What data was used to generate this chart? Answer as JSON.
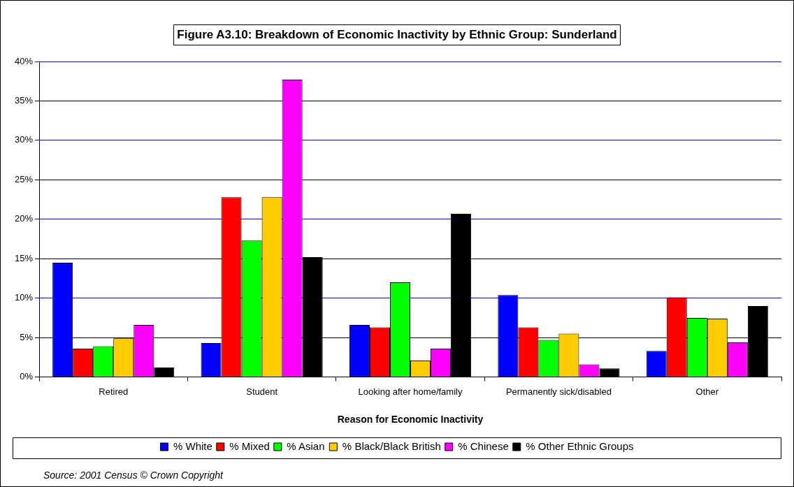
{
  "chart_data": {
    "type": "bar",
    "title": "Figure A3.10: Breakdown of Economic Inactivity by Ethnic Group: Sunderland",
    "xlabel": "Reason for Economic Inactivity",
    "categories": [
      "Retired",
      "Student",
      "Looking after home/family",
      "Permanently sick/disabled",
      "Other"
    ],
    "series": [
      {
        "name": "% White",
        "color": "#0000ff",
        "values": [
          14.5,
          4.3,
          6.6,
          10.4,
          3.3
        ]
      },
      {
        "name": "% Mixed",
        "color": "#ff0000",
        "values": [
          3.6,
          22.8,
          6.3,
          6.3,
          10.1
        ]
      },
      {
        "name": "% Asian",
        "color": "#00ff00",
        "values": [
          3.9,
          17.3,
          12.0,
          4.7,
          7.5
        ]
      },
      {
        "name": "% Black/Black British",
        "color": "#ffcc00",
        "values": [
          4.9,
          22.8,
          2.1,
          5.5,
          7.4
        ]
      },
      {
        "name": "% Chinese",
        "color": "#ff00ff",
        "values": [
          6.6,
          37.7,
          3.6,
          1.6,
          4.4
        ]
      },
      {
        "name": "% Other Ethnic Groups",
        "color": "#000000",
        "values": [
          1.2,
          15.2,
          20.7,
          1.1,
          9.0
        ]
      }
    ],
    "ylim": [
      0,
      40
    ],
    "yticks": [
      {
        "value": 0,
        "label": "0%"
      },
      {
        "value": 5,
        "label": "5%"
      },
      {
        "value": 10,
        "label": "10%"
      },
      {
        "value": 15,
        "label": "15%"
      },
      {
        "value": 20,
        "label": "20%"
      },
      {
        "value": 25,
        "label": "25%"
      },
      {
        "value": 30,
        "label": "30%"
      },
      {
        "value": 35,
        "label": "35%"
      },
      {
        "value": 40,
        "label": "40%"
      }
    ],
    "grid": "y",
    "legend": "bottom",
    "annotations": [
      "Source: 2001 Census © Crown Copyright"
    ]
  }
}
